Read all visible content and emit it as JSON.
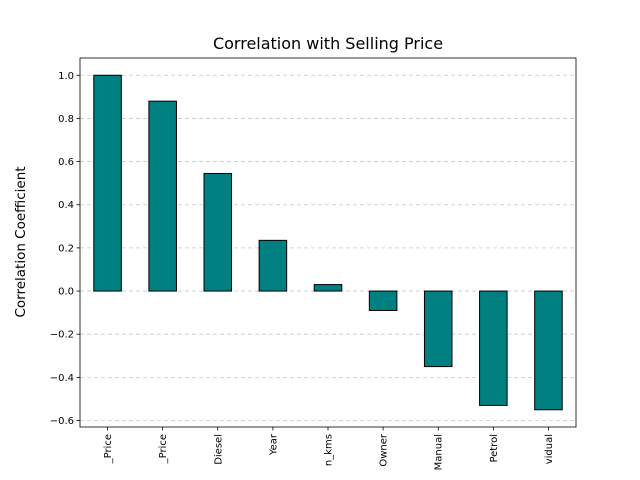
{
  "chart_data": {
    "type": "bar",
    "title": "Correlation with Selling Price",
    "xlabel": "",
    "ylabel": "Correlation Coefficient",
    "categories": [
      "_Price",
      "_Price",
      "Diesel",
      "Year",
      "n_kms",
      "Owner",
      "Manual",
      "Petrol",
      "vidual"
    ],
    "values": [
      1.0,
      0.88,
      0.545,
      0.235,
      0.03,
      -0.09,
      -0.35,
      -0.53,
      -0.55
    ],
    "ylim": [
      -0.63,
      1.08
    ],
    "yticks": [
      -0.6,
      -0.4,
      -0.2,
      0.0,
      0.2,
      0.4,
      0.6,
      0.8,
      1.0
    ],
    "ytick_labels": [
      "−0.6",
      "−0.4",
      "−0.2",
      "0.0",
      "0.2",
      "0.4",
      "0.6",
      "0.8",
      "1.0"
    ],
    "grid": "y-dashed",
    "legend": "none",
    "colors": {
      "bar": "#008080",
      "bar_edge": "#000000",
      "grid": "#c8c8c8"
    }
  }
}
